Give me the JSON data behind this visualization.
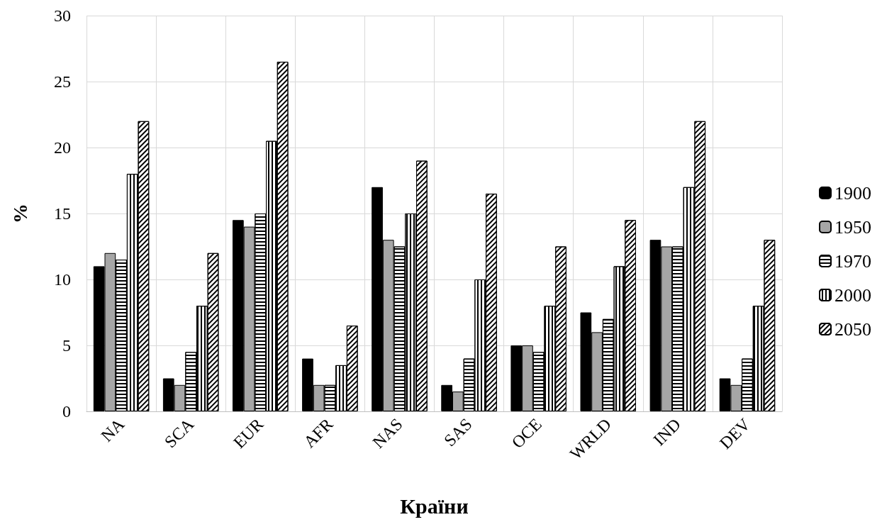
{
  "chart_data": {
    "type": "bar",
    "xlabel": "Країни",
    "ylabel": "%",
    "categories": [
      "NA",
      "SCA",
      "EUR",
      "AFR",
      "NAS",
      "SAS",
      "OCE",
      "WRLD",
      "IND",
      "DEV"
    ],
    "series": [
      {
        "name": "1900",
        "color": "#000000",
        "values": [
          11,
          2.5,
          14.5,
          4,
          17,
          2,
          5,
          7.5,
          13,
          2.5
        ]
      },
      {
        "name": "1950",
        "color": "#a6a6a6",
        "values": [
          12,
          2,
          14,
          2,
          13,
          1.5,
          5,
          6,
          12.5,
          2
        ]
      },
      {
        "name": "1970",
        "color": "#ffffff",
        "values": [
          11.5,
          4.5,
          15,
          2,
          12.5,
          4,
          4.5,
          7,
          12.5,
          4
        ]
      },
      {
        "name": "2000",
        "color": "#ffffff",
        "values": [
          18,
          8,
          20.5,
          3.5,
          15,
          10,
          8,
          11,
          17,
          8
        ]
      },
      {
        "name": "2050",
        "color": "#ffffff",
        "values": [
          22,
          12,
          26.5,
          6.5,
          19,
          16.5,
          12.5,
          14.5,
          22,
          13
        ]
      }
    ],
    "ylim": [
      0,
      30
    ],
    "yticks": [
      0,
      5,
      10,
      15,
      20,
      25,
      30
    ],
    "grid": true,
    "legend": "right"
  }
}
